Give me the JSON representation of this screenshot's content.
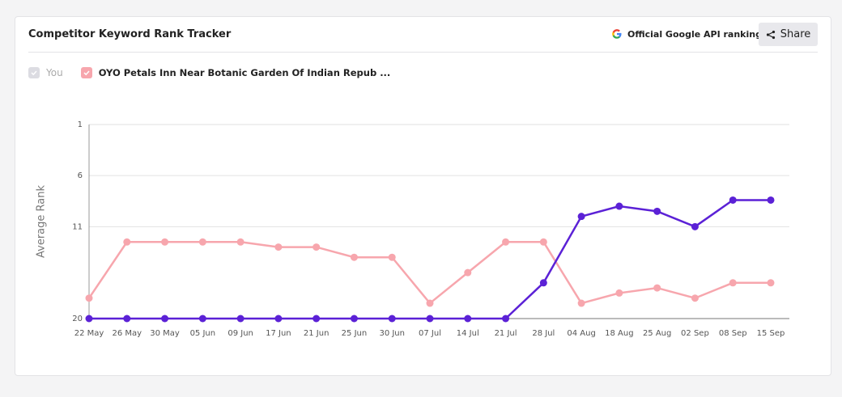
{
  "header": {
    "title": "Competitor Keyword Rank Tracker",
    "badge": "Official Google API rankings",
    "share": "Share"
  },
  "chart_data": {
    "type": "line",
    "y_label": "Average Rank",
    "categories": [
      "22 May",
      "26 May",
      "30 May",
      "05 Jun",
      "09 Jun",
      "17 Jun",
      "21 Jun",
      "25 Jun",
      "30 Jun",
      "07 Jul",
      "14 Jul",
      "21 Jul",
      "28 Jul",
      "04 Aug",
      "18 Aug",
      "25 Aug",
      "02 Sep",
      "08 Sep",
      "15 Sep"
    ],
    "series": [
      {
        "name": "You",
        "color": "#5b21d6",
        "values": [
          20,
          20,
          20,
          20,
          20,
          20,
          20,
          20,
          20,
          20,
          20,
          20,
          16.5,
          10,
          9,
          9.5,
          11,
          8.4,
          8.4
        ]
      },
      {
        "name": "OYO Petals Inn Near Botanic Garden Of Indian Repub ...",
        "color": "#f7a6ad",
        "values": [
          18,
          12.5,
          12.5,
          12.5,
          12.5,
          13,
          13,
          14,
          14,
          18.5,
          15.5,
          12.5,
          12.5,
          18.5,
          17.5,
          17,
          18,
          16.5,
          16.5
        ]
      }
    ],
    "ylim": [
      20,
      1
    ],
    "yticks": [
      1,
      6,
      11,
      20
    ],
    "grid": true
  }
}
